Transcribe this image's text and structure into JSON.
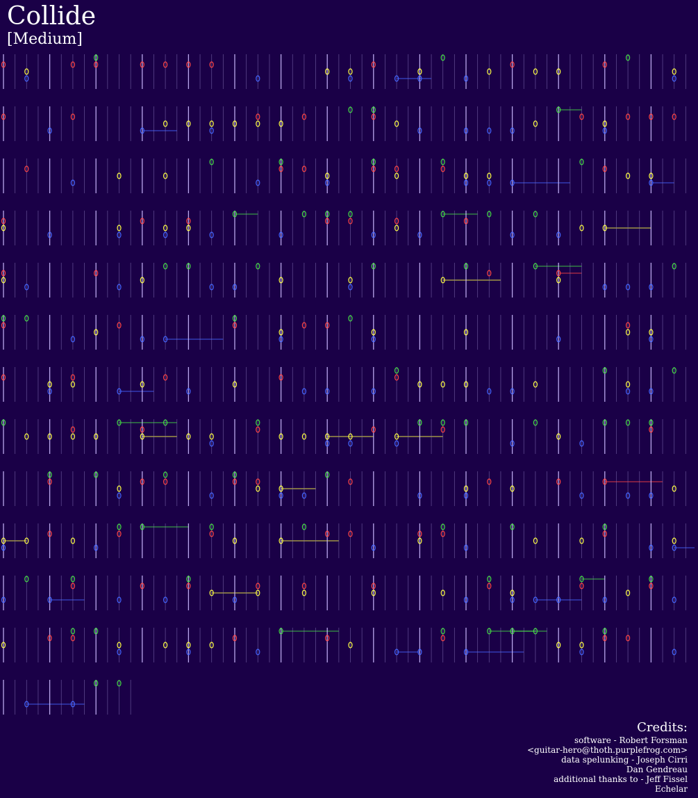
{
  "header": {
    "title": "Collide",
    "difficulty": "[Medium]"
  },
  "credits": {
    "heading": "Credits:",
    "lines": [
      "software - Robert Forsman",
      "<guitar-hero@thoth.purplefrog.com>",
      "data spelunking - Joseph Cirri",
      "Dan Gendreau",
      "additional thanks to - Jeff Fissel",
      "Echelar"
    ]
  }
}
